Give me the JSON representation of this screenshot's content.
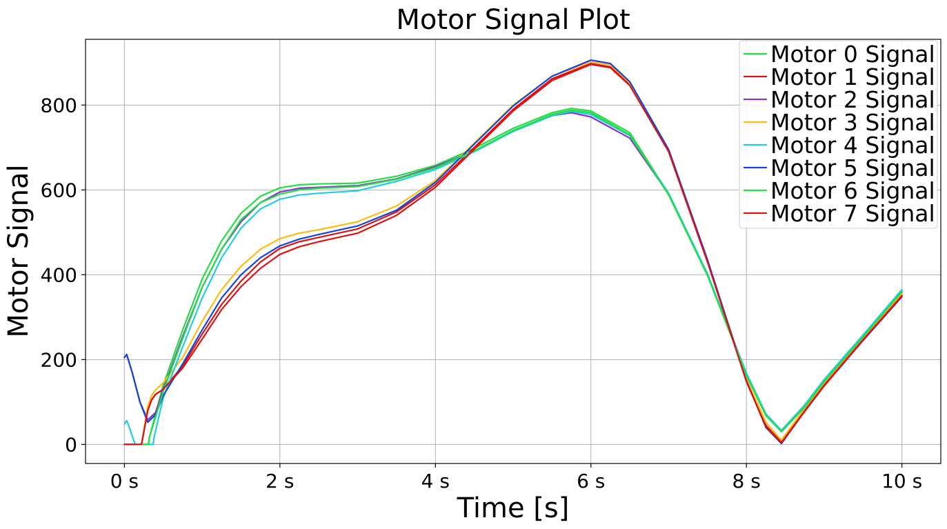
{
  "chart_data": {
    "type": "line",
    "title": "Motor Signal Plot",
    "xlabel": "Time [s]",
    "ylabel": "Motor Signal",
    "xlim": [
      -0.5,
      10.5
    ],
    "ylim": [
      -45,
      955
    ],
    "xticks": [
      0,
      2,
      4,
      6,
      8,
      10
    ],
    "xtick_labels": [
      "0 s",
      "2 s",
      "4 s",
      "6 s",
      "8 s",
      "10 s"
    ],
    "yticks": [
      0,
      200,
      400,
      600,
      800
    ],
    "ytick_labels": [
      "0",
      "200",
      "400",
      "600",
      "800"
    ],
    "grid": true,
    "legend_position": "top-right",
    "series": [
      {
        "name": "Motor 0 Signal",
        "color": "#22dd44",
        "x": [
          0.0,
          0.31,
          0.32,
          0.5,
          0.75,
          1.0,
          1.25,
          1.5,
          1.75,
          2.0,
          2.25,
          2.5,
          3.0,
          3.5,
          4.0,
          4.5,
          5.0,
          5.5,
          5.75,
          6.0,
          6.5,
          7.0,
          7.5,
          8.0,
          8.25,
          8.45,
          8.75,
          9.0,
          9.5,
          10.0
        ],
        "y": [
          0,
          0,
          15,
          140,
          270,
          390,
          480,
          545,
          585,
          605,
          612,
          614,
          616,
          632,
          658,
          698,
          745,
          782,
          792,
          786,
          735,
          590,
          400,
          165,
          70,
          32,
          90,
          150,
          255,
          362
        ]
      },
      {
        "name": "Motor 1 Signal",
        "color": "#dd1111",
        "x": [
          0.0,
          0.22,
          0.26,
          0.3,
          0.35,
          0.4,
          0.5,
          0.75,
          1.0,
          1.25,
          1.5,
          1.75,
          2.0,
          2.25,
          2.5,
          3.0,
          3.5,
          4.0,
          4.5,
          5.0,
          5.5,
          6.0,
          6.25,
          6.5,
          7.0,
          7.5,
          8.0,
          8.25,
          8.45,
          8.75,
          9.0,
          9.5,
          10.0
        ],
        "y": [
          0,
          0,
          40,
          80,
          105,
          118,
          130,
          185,
          260,
          330,
          385,
          430,
          462,
          478,
          488,
          508,
          548,
          612,
          700,
          790,
          862,
          898,
          890,
          848,
          690,
          430,
          150,
          45,
          5,
          80,
          140,
          248,
          352
        ]
      },
      {
        "name": "Motor 2 Signal",
        "color": "#8833cc",
        "x": [
          0.0,
          0.03,
          0.1,
          0.2,
          0.3,
          0.4,
          0.5,
          0.75,
          1.0,
          1.25,
          1.5,
          1.75,
          2.0,
          2.25,
          2.5,
          3.0,
          3.5,
          4.0,
          4.5,
          5.0,
          5.5,
          5.75,
          6.0,
          6.5,
          7.0,
          7.5,
          8.0,
          8.25,
          8.45,
          8.75,
          9.0,
          9.5,
          10.0
        ],
        "y": [
          205,
          212,
          170,
          100,
          58,
          75,
          130,
          255,
          370,
          460,
          525,
          570,
          595,
          604,
          606,
          610,
          626,
          655,
          692,
          738,
          775,
          782,
          772,
          722,
          590,
          400,
          165,
          70,
          30,
          88,
          148,
          253,
          358
        ]
      },
      {
        "name": "Motor 3 Signal",
        "color": "#ffbb11",
        "x": [
          0.0,
          0.22,
          0.26,
          0.3,
          0.35,
          0.4,
          0.5,
          0.75,
          1.0,
          1.25,
          1.5,
          1.75,
          2.0,
          2.25,
          2.5,
          3.0,
          3.5,
          4.0,
          4.5,
          5.0,
          5.5,
          6.0,
          6.25,
          6.5,
          7.0,
          7.5,
          8.0,
          8.25,
          8.45,
          8.75,
          9.0,
          9.5,
          10.0
        ],
        "y": [
          0,
          0,
          45,
          90,
          115,
          128,
          145,
          205,
          290,
          365,
          420,
          460,
          485,
          498,
          506,
          525,
          562,
          622,
          710,
          800,
          868,
          902,
          895,
          852,
          692,
          432,
          155,
          52,
          10,
          85,
          145,
          252,
          356
        ]
      },
      {
        "name": "Motor 4 Signal",
        "color": "#22ccdd",
        "x": [
          0.0,
          0.03,
          0.06,
          0.1,
          0.14,
          0.37,
          0.38,
          0.5,
          0.75,
          1.0,
          1.25,
          1.5,
          1.75,
          2.0,
          2.25,
          2.5,
          3.0,
          3.5,
          4.0,
          4.5,
          5.0,
          5.5,
          5.75,
          6.0,
          6.5,
          7.0,
          7.5,
          8.0,
          8.25,
          8.45,
          8.75,
          9.0,
          9.5,
          10.0
        ],
        "y": [
          48,
          56,
          42,
          20,
          0,
          0,
          15,
          110,
          230,
          345,
          440,
          510,
          555,
          578,
          588,
          592,
          598,
          620,
          648,
          690,
          738,
          775,
          785,
          778,
          728,
          592,
          402,
          168,
          72,
          33,
          93,
          153,
          258,
          365
        ]
      },
      {
        "name": "Motor 5 Signal",
        "color": "#1144dd",
        "x": [
          0.0,
          0.03,
          0.1,
          0.2,
          0.3,
          0.4,
          0.5,
          0.75,
          1.0,
          1.25,
          1.5,
          1.75,
          2.0,
          2.25,
          2.5,
          3.0,
          3.5,
          4.0,
          4.5,
          5.0,
          5.5,
          6.0,
          6.25,
          6.5,
          7.0,
          7.5,
          8.0,
          8.25,
          8.45,
          8.75,
          9.0,
          9.5,
          10.0
        ],
        "y": [
          205,
          212,
          170,
          100,
          52,
          70,
          115,
          190,
          270,
          345,
          400,
          440,
          468,
          484,
          495,
          515,
          552,
          618,
          708,
          798,
          868,
          906,
          898,
          855,
          695,
          435,
          150,
          40,
          2,
          78,
          138,
          245,
          348
        ]
      },
      {
        "name": "Motor 6 Signal",
        "color": "#22dd44",
        "x": [
          0.0,
          0.31,
          0.32,
          0.5,
          0.75,
          1.0,
          1.25,
          1.5,
          1.75,
          2.0,
          2.25,
          2.5,
          3.0,
          3.5,
          4.0,
          4.5,
          5.0,
          5.5,
          5.75,
          6.0,
          6.5,
          7.0,
          7.5,
          8.0,
          8.25,
          8.45,
          8.75,
          9.0,
          9.5,
          10.0
        ],
        "y": [
          0,
          0,
          15,
          125,
          250,
          370,
          460,
          530,
          570,
          590,
          600,
          604,
          608,
          625,
          652,
          692,
          740,
          778,
          788,
          782,
          730,
          588,
          398,
          163,
          68,
          30,
          88,
          148,
          253,
          360
        ]
      },
      {
        "name": "Motor 7 Signal",
        "color": "#dd1111",
        "x": [
          0.0,
          0.22,
          0.26,
          0.3,
          0.35,
          0.4,
          0.5,
          0.75,
          1.0,
          1.25,
          1.5,
          1.75,
          2.0,
          2.25,
          2.5,
          3.0,
          3.5,
          4.0,
          4.5,
          5.0,
          5.5,
          6.0,
          6.25,
          6.5,
          7.0,
          7.5,
          8.0,
          8.25,
          8.45,
          8.75,
          9.0,
          9.5,
          10.0
        ],
        "y": [
          0,
          0,
          40,
          80,
          105,
          118,
          130,
          180,
          248,
          318,
          372,
          415,
          448,
          466,
          478,
          498,
          540,
          606,
          696,
          786,
          858,
          896,
          888,
          846,
          690,
          430,
          148,
          42,
          4,
          78,
          138,
          246,
          350
        ]
      }
    ]
  }
}
